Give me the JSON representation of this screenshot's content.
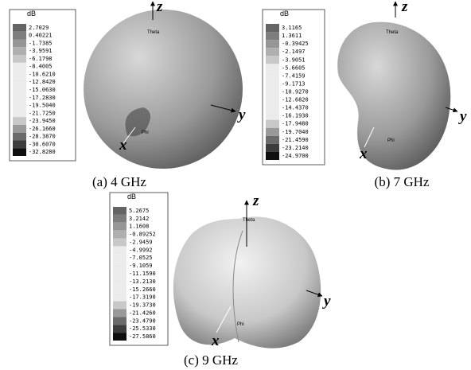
{
  "panels": [
    {
      "caption": "(a) 4 GHz",
      "unit": "dB",
      "levels": [
        "2.7029",
        "0.40221",
        "-1.7385",
        "-3.9591",
        "-6.1798",
        "-8.4005",
        "-10.6210",
        "-12.8420",
        "-15.0630",
        "-17.2830",
        "-19.5040",
        "-21.7250",
        "-23.9450",
        "-26.1660",
        "-28.3870",
        "-30.6070",
        "-32.8280"
      ],
      "axes": {
        "z": "z",
        "y": "y",
        "x": "x",
        "theta": "Theta",
        "phi": "Phi"
      }
    },
    {
      "caption": "(b) 7 GHz",
      "unit": "dB",
      "levels": [
        "3.1165",
        "1.3611",
        "-0.39425",
        "-2.1497",
        "-3.9051",
        "-5.6605",
        "-7.4159",
        "-9.1713",
        "-10.9270",
        "-12.6820",
        "-14.4370",
        "-16.1930",
        "-17.9480",
        "-19.7040",
        "-21.4590",
        "-23.2140",
        "-24.9700"
      ],
      "axes": {
        "z": "z",
        "y": "y",
        "x": "x",
        "theta": "Theta",
        "phi": "Phi"
      }
    },
    {
      "caption": "(c) 9 GHz",
      "unit": "dB",
      "levels": [
        "5.2675",
        "3.2142",
        "1.1608",
        "-0.89252",
        "-2.9459",
        "-4.9992",
        "-7.0525",
        "-9.1059",
        "-11.1590",
        "-13.2130",
        "-15.2660",
        "-17.3190",
        "-19.3730",
        "-21.4260",
        "-23.4790",
        "-25.5330",
        "-27.5860"
      ],
      "axes": {
        "z": "z",
        "y": "y",
        "x": "x",
        "theta": "Theta",
        "phi": "Phi"
      }
    }
  ]
}
